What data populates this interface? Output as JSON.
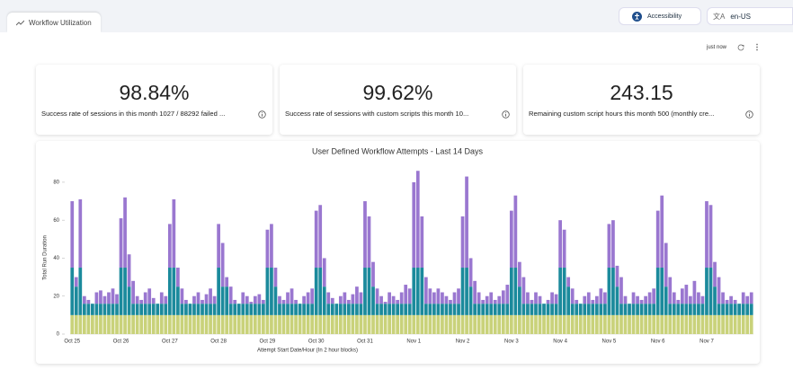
{
  "tab": "Workflow Utilization",
  "toolbar": {
    "accessibility": "Accessibility",
    "language": "en-US",
    "refreshed": "just now"
  },
  "cards": [
    {
      "value": "98.84%",
      "description": "Success rate of sessions in this month 1027 / 88292 failed ..."
    },
    {
      "value": "99.62%",
      "description": "Success rate of sessions with custom scripts this month 10..."
    },
    {
      "value": "243.15",
      "description": "Remaining custom script hours this month 500 (monthly cre..."
    }
  ],
  "chart_data": {
    "type": "bar",
    "stacked": true,
    "title": "User Defined Workflow Attempts - Last 14 Days",
    "xlabel": "Attempt Start Date/Hour (In 2 hour blocks)",
    "ylabel": "Total Run Duration",
    "categories": [
      "Oct 25",
      null,
      null,
      null,
      null,
      null,
      null,
      null,
      null,
      null,
      null,
      null,
      "Oct 26",
      null,
      null,
      null,
      null,
      null,
      null,
      null,
      null,
      null,
      null,
      null,
      "Oct 27",
      null,
      null,
      null,
      null,
      null,
      null,
      null,
      null,
      null,
      null,
      null,
      "Oct 28",
      null,
      null,
      null,
      null,
      null,
      null,
      null,
      null,
      null,
      null,
      null,
      "Oct 29",
      null,
      null,
      null,
      null,
      null,
      null,
      null,
      null,
      null,
      null,
      null,
      "Oct 30",
      null,
      null,
      null,
      null,
      null,
      null,
      null,
      null,
      null,
      null,
      null,
      "Oct 31",
      null,
      null,
      null,
      null,
      null,
      null,
      null,
      null,
      null,
      null,
      null,
      "Nov 1",
      null,
      null,
      null,
      null,
      null,
      null,
      null,
      null,
      null,
      null,
      null,
      "Nov 2",
      null,
      null,
      null,
      null,
      null,
      null,
      null,
      null,
      null,
      null,
      null,
      "Nov 3",
      null,
      null,
      null,
      null,
      null,
      null,
      null,
      null,
      null,
      null,
      null,
      "Nov 4",
      null,
      null,
      null,
      null,
      null,
      null,
      null,
      null,
      null,
      null,
      null,
      "Nov 5",
      null,
      null,
      null,
      null,
      null,
      null,
      null,
      null,
      null,
      null,
      null,
      "Nov 6",
      null,
      null,
      null,
      null,
      null,
      null,
      null,
      null,
      null,
      null,
      null,
      "Nov 7",
      null,
      null,
      null,
      null,
      null,
      null,
      null,
      null,
      null,
      null,
      null
    ],
    "series": [
      {
        "color": "#c9d27a",
        "values": [
          10,
          10,
          10,
          10,
          10,
          10,
          10,
          10,
          10,
          10,
          10,
          10,
          10,
          10,
          10,
          10,
          10,
          10,
          10,
          10,
          10,
          10,
          10,
          10,
          10,
          10,
          10,
          10,
          10,
          10,
          10,
          10,
          10,
          10,
          10,
          10,
          10,
          10,
          10,
          10,
          10,
          10,
          10,
          10,
          10,
          10,
          10,
          10,
          10,
          10,
          10,
          10,
          10,
          10,
          10,
          10,
          10,
          10,
          10,
          10,
          10,
          10,
          10,
          10,
          10,
          10,
          10,
          10,
          10,
          10,
          10,
          10,
          10,
          10,
          10,
          10,
          10,
          10,
          10,
          10,
          10,
          10,
          10,
          10,
          10,
          10,
          10,
          10,
          10,
          10,
          10,
          10,
          10,
          10,
          10,
          10,
          10,
          10,
          10,
          10,
          10,
          10,
          10,
          10,
          10,
          10,
          10,
          10,
          10,
          10,
          10,
          10,
          10,
          10,
          10,
          10,
          10,
          10,
          10,
          10,
          10,
          10,
          10,
          10,
          10,
          10,
          10,
          10,
          10,
          10,
          10,
          10,
          10,
          10,
          10,
          10,
          10,
          10,
          10,
          10,
          10,
          10,
          10,
          10,
          10,
          10,
          10,
          10,
          10,
          10,
          10,
          10,
          10,
          10,
          10,
          10,
          10,
          10,
          10,
          10,
          10,
          10,
          10,
          10,
          10,
          10,
          10,
          10
        ]
      },
      {
        "color": "#1b8a9c",
        "values": [
          25,
          15,
          25,
          6,
          6,
          6,
          6,
          6,
          6,
          6,
          6,
          6,
          25,
          25,
          15,
          6,
          6,
          6,
          6,
          6,
          6,
          6,
          6,
          6,
          25,
          25,
          15,
          6,
          6,
          6,
          6,
          6,
          6,
          6,
          6,
          6,
          25,
          15,
          15,
          6,
          6,
          6,
          6,
          6,
          6,
          6,
          6,
          6,
          25,
          25,
          15,
          6,
          6,
          6,
          6,
          6,
          6,
          6,
          6,
          6,
          25,
          25,
          15,
          6,
          6,
          6,
          6,
          6,
          6,
          6,
          6,
          6,
          25,
          25,
          15,
          6,
          6,
          6,
          6,
          6,
          6,
          6,
          6,
          6,
          25,
          25,
          25,
          6,
          6,
          6,
          6,
          6,
          6,
          6,
          6,
          6,
          25,
          25,
          15,
          6,
          6,
          6,
          6,
          6,
          6,
          6,
          6,
          6,
          25,
          25,
          15,
          6,
          6,
          6,
          6,
          6,
          6,
          6,
          6,
          6,
          25,
          25,
          15,
          6,
          6,
          6,
          6,
          6,
          6,
          6,
          6,
          6,
          25,
          25,
          15,
          6,
          6,
          6,
          6,
          6,
          6,
          6,
          6,
          6,
          25,
          25,
          15,
          6,
          6,
          6,
          6,
          6,
          6,
          6,
          6,
          6,
          25,
          25,
          15,
          6,
          6,
          6,
          6,
          6,
          6,
          6,
          6,
          6
        ]
      },
      {
        "color": "#9a77d0",
        "values": [
          35,
          5,
          36,
          4,
          2,
          0,
          6,
          7,
          4,
          6,
          8,
          5,
          26,
          37,
          17,
          12,
          4,
          2,
          6,
          8,
          3,
          0,
          6,
          4,
          23,
          36,
          10,
          8,
          2,
          0,
          4,
          6,
          2,
          5,
          8,
          4,
          23,
          23,
          5,
          9,
          2,
          0,
          6,
          4,
          1,
          4,
          5,
          2,
          20,
          23,
          10,
          4,
          2,
          6,
          8,
          2,
          0,
          4,
          6,
          8,
          30,
          33,
          15,
          6,
          3,
          0,
          4,
          6,
          2,
          5,
          9,
          6,
          35,
          27,
          13,
          8,
          4,
          1,
          6,
          4,
          2,
          6,
          10,
          8,
          45,
          51,
          27,
          14,
          8,
          6,
          8,
          6,
          4,
          2,
          6,
          8,
          27,
          48,
          15,
          12,
          6,
          2,
          4,
          6,
          2,
          4,
          7,
          10,
          30,
          38,
          13,
          14,
          6,
          2,
          6,
          4,
          0,
          2,
          6,
          5,
          25,
          20,
          5,
          8,
          2,
          0,
          4,
          6,
          2,
          4,
          8,
          6,
          23,
          25,
          11,
          14,
          4,
          0,
          6,
          4,
          2,
          4,
          6,
          8,
          30,
          38,
          23,
          14,
          6,
          2,
          8,
          10,
          4,
          12,
          6,
          4,
          35,
          33,
          13,
          14,
          6,
          2,
          4,
          2,
          0,
          6,
          4,
          6
        ]
      }
    ],
    "ylim": [
      0,
      88
    ],
    "yticks": [
      0,
      20,
      40,
      60,
      80
    ]
  }
}
